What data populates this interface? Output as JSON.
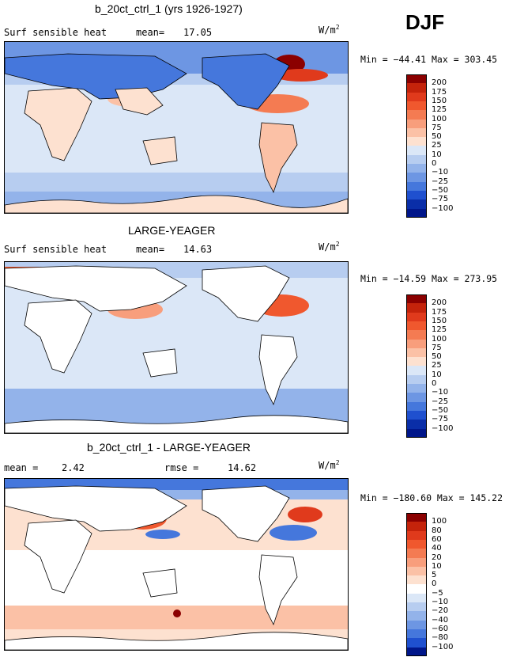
{
  "season": "DJF",
  "panels": [
    {
      "title": "b_20ct_ctrl_1 (yrs 1926-1927)",
      "variable": "Surf sensible heat",
      "mean_label": "mean=",
      "mean_value": "17.05",
      "units_base": "W/m",
      "units_sup": "2",
      "minmax": "Min = −44.41 Max = 303.45",
      "colorbar": {
        "labels": [
          "200",
          "175",
          "150",
          "125",
          "100",
          "75",
          "50",
          "25",
          "10",
          "0",
          "−10",
          "−25",
          "−50",
          "−75",
          "−100"
        ],
        "colors": [
          "#8b0000",
          "#c4230b",
          "#e03a1c",
          "#f0582e",
          "#f47b52",
          "#f89e7c",
          "#fbc1a6",
          "#fde1d0",
          "#dbe7f7",
          "#b7cdf0",
          "#93b3ea",
          "#6d96e3",
          "#4577dc",
          "#1f50cf",
          "#0a2ea8",
          "#00168a"
        ]
      }
    },
    {
      "title": "LARGE-YEAGER",
      "variable": "Surf sensible heat",
      "mean_label": "mean=",
      "mean_value": "14.63",
      "units_base": "W/m",
      "units_sup": "2",
      "minmax": "Min = −14.59 Max = 273.95",
      "colorbar": {
        "labels": [
          "200",
          "175",
          "150",
          "125",
          "100",
          "75",
          "50",
          "25",
          "10",
          "0",
          "−10",
          "−25",
          "−50",
          "−75",
          "−100"
        ],
        "colors": [
          "#8b0000",
          "#c4230b",
          "#e03a1c",
          "#f0582e",
          "#f47b52",
          "#f89e7c",
          "#fbc1a6",
          "#fde1d0",
          "#dbe7f7",
          "#b7cdf0",
          "#93b3ea",
          "#6d96e3",
          "#4577dc",
          "#1f50cf",
          "#0a2ea8",
          "#00168a"
        ]
      }
    },
    {
      "title": "b_20ct_ctrl_1 - LARGE-YEAGER",
      "mean_label": "mean =",
      "mean_value": "2.42",
      "rmse_label": "rmse =",
      "rmse_value": "14.62",
      "units_base": "W/m",
      "units_sup": "2",
      "minmax": "Min = −180.60 Max = 145.22",
      "colorbar": {
        "labels": [
          "100",
          "80",
          "60",
          "40",
          "20",
          "10",
          "5",
          "0",
          "−5",
          "−10",
          "−20",
          "−40",
          "−60",
          "−80",
          "−100"
        ],
        "colors": [
          "#8b0000",
          "#c4230b",
          "#e03a1c",
          "#f0582e",
          "#f47b52",
          "#f89e7c",
          "#fbc1a6",
          "#fde1d0",
          "#ffffff",
          "#dbe7f7",
          "#b7cdf0",
          "#93b3ea",
          "#6d96e3",
          "#4577dc",
          "#1f50cf",
          "#00168a"
        ]
      }
    }
  ]
}
